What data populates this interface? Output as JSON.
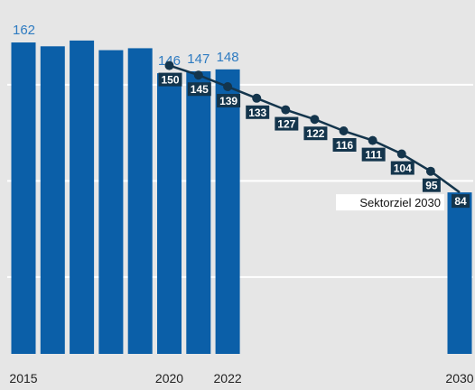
{
  "chart_data": {
    "type": "bar",
    "title": "",
    "xlabel": "",
    "ylabel": "",
    "ylim": [
      0,
      170
    ],
    "categories": [
      "2015",
      "2016",
      "2017",
      "2018",
      "2019",
      "2020",
      "2021",
      "2022",
      "2030"
    ],
    "x_tick_labels": {
      "2015": "2015",
      "2020": "2020",
      "2022": "2022",
      "2030": "2030"
    },
    "grid": true,
    "series": [
      {
        "values": [
          162,
          160,
          163,
          158,
          159,
          146,
          147,
          148,
          84
        ],
        "value_labels": {
          "2015": "162",
          "2020": "146",
          "2021": "147",
          "2022": "148"
        },
        "color": "#0b5fa8"
      }
    ],
    "target_path": {
      "years": [
        2020,
        2021,
        2022,
        2023,
        2024,
        2025,
        2026,
        2027,
        2028,
        2029,
        2030
      ],
      "values": [
        150,
        145,
        139,
        133,
        127,
        122,
        116,
        111,
        104,
        95,
        84
      ],
      "labels": [
        "150",
        "145",
        "139",
        "133",
        "127",
        "122",
        "116",
        "111",
        "104",
        "95",
        "84"
      ],
      "color": "#14354c"
    },
    "annotation": {
      "text": "Sektorziel 2030",
      "year": 2030
    }
  }
}
